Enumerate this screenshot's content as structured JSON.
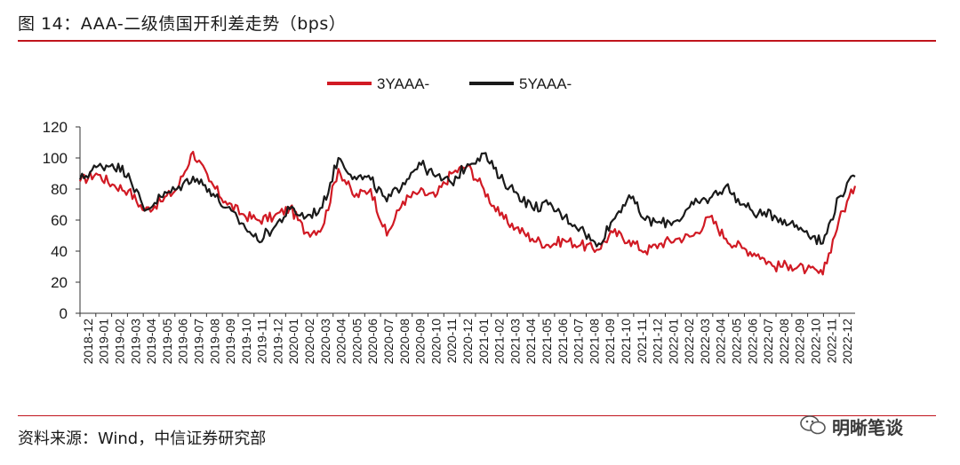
{
  "figure": {
    "title": "图 14：AAA-二级债国开利差走势（bps）",
    "source": "资料来源：Wind，中信证券研究部",
    "watermark": "明晰笔谈",
    "accent_color": "#c0141c"
  },
  "chart_data": {
    "type": "line",
    "title": "",
    "xlabel": "",
    "ylabel": "",
    "ylim": [
      0,
      120
    ],
    "yticks": [
      0,
      20,
      40,
      60,
      80,
      100,
      120
    ],
    "grid": false,
    "legend": "top-center",
    "x_tick_labels": [
      "2018-12",
      "2019-01",
      "2019-02",
      "2019-03",
      "2019-04",
      "2019-05",
      "2019-06",
      "2019-07",
      "2019-08",
      "2019-09",
      "2019-10",
      "2019-11",
      "2019-12",
      "2020-01",
      "2020-02",
      "2020-03",
      "2020-04",
      "2020-05",
      "2020-06",
      "2020-07",
      "2020-08",
      "2020-09",
      "2020-10",
      "2020-11",
      "2020-12",
      "2021-01",
      "2021-02",
      "2021-03",
      "2021-04",
      "2021-05",
      "2021-06",
      "2021-07",
      "2021-08",
      "2021-09",
      "2021-10",
      "2021-11",
      "2021-12",
      "2022-01",
      "2022-02",
      "2022-03",
      "2022-04",
      "2022-05",
      "2022-06",
      "2022-07",
      "2022-08",
      "2022-09",
      "2022-10",
      "2022-11",
      "2022-12"
    ],
    "x": [
      "2018-12",
      "2019-01",
      "2019-02",
      "2019-03",
      "2019-04",
      "2019-05",
      "2019-06",
      "2019-07",
      "2019-08",
      "2019-09",
      "2019-10",
      "2019-11",
      "2019-12",
      "2020-01",
      "2020-02",
      "2020-03",
      "2020-04",
      "2020-05",
      "2020-06",
      "2020-07",
      "2020-08",
      "2020-09",
      "2020-10",
      "2020-11",
      "2020-12",
      "2021-01",
      "2021-02",
      "2021-03",
      "2021-04",
      "2021-05",
      "2021-06",
      "2021-07",
      "2021-08",
      "2021-09",
      "2021-10",
      "2021-11",
      "2021-12",
      "2022-01",
      "2022-02",
      "2022-03",
      "2022-04",
      "2022-05",
      "2022-06",
      "2022-07",
      "2022-08",
      "2022-09",
      "2022-10",
      "2022-11",
      "2022-12"
    ],
    "series": [
      {
        "name": "3YAAA-",
        "color": "#d11a24",
        "values": [
          85,
          90,
          83,
          79,
          66,
          72,
          80,
          104,
          85,
          72,
          64,
          60,
          62,
          68,
          52,
          55,
          93,
          75,
          80,
          50,
          72,
          78,
          75,
          90,
          95,
          80,
          63,
          55,
          48,
          44,
          47,
          44,
          41,
          52,
          47,
          40,
          45,
          48,
          50,
          62,
          48,
          42,
          38,
          30,
          31,
          28,
          25,
          60,
          82
        ]
      },
      {
        "name": "5YAAA-",
        "color": "#1a1a1a",
        "values": [
          86,
          94,
          96,
          90,
          66,
          75,
          80,
          88,
          80,
          68,
          58,
          47,
          55,
          67,
          62,
          68,
          100,
          88,
          86,
          72,
          84,
          97,
          88,
          84,
          96,
          103,
          87,
          78,
          68,
          70,
          62,
          55,
          43,
          60,
          76,
          60,
          58,
          60,
          70,
          74,
          82,
          70,
          64,
          63,
          58,
          53,
          45,
          75,
          88
        ]
      }
    ]
  }
}
